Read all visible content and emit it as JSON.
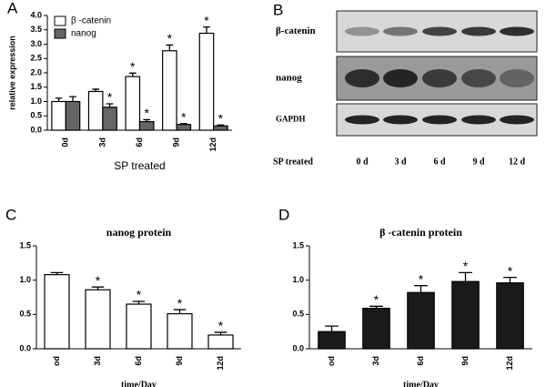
{
  "chart_data": [
    {
      "type": "bar",
      "panel": "A",
      "categories": [
        "0d",
        "3d",
        "6d",
        "9d",
        "12d"
      ],
      "x_label": "SP treated",
      "y_label": "relative expression",
      "ylim": [
        0,
        4
      ],
      "yticks": [
        {
          "value": 0,
          "label": "0.0"
        },
        {
          "value": 0.5,
          "label": "0.5"
        },
        {
          "value": 1,
          "label": "1.0"
        },
        {
          "value": 1.5,
          "label": "1.5"
        },
        {
          "value": 2,
          "label": "2.0"
        },
        {
          "value": 2.5,
          "label": "2.5"
        },
        {
          "value": 3,
          "label": "3.0"
        },
        {
          "value": 3.5,
          "label": "3.5"
        },
        {
          "value": 4,
          "label": "4.0"
        }
      ],
      "legend": "top-left",
      "series": [
        {
          "name": "β -catenin",
          "color": "#ffffff",
          "values": [
            1.0,
            1.35,
            1.87,
            2.77,
            3.38
          ],
          "errors": [
            0.12,
            0.08,
            0.12,
            0.2,
            0.22
          ],
          "markers": [
            null,
            null,
            "*",
            "*",
            "*"
          ]
        },
        {
          "name": "nanog",
          "color": "#666666",
          "values": [
            1.0,
            0.8,
            0.3,
            0.2,
            0.15
          ],
          "errors": [
            0.17,
            0.12,
            0.07,
            0.03,
            0.03
          ],
          "markers": [
            null,
            "*",
            "*",
            "*",
            "*"
          ]
        }
      ]
    },
    {
      "type": "bar",
      "panel": "C",
      "title": "nanog protein",
      "categories": [
        "od",
        "3d",
        "6d",
        "9d",
        "12d"
      ],
      "x_label": "time/Day",
      "ylim": [
        0,
        1.5
      ],
      "yticks": [
        {
          "value": 0,
          "label": "0.0"
        },
        {
          "value": 0.5,
          "label": "0.5"
        },
        {
          "value": 1,
          "label": "1.0"
        },
        {
          "value": 1.5,
          "label": "1.5"
        }
      ],
      "series": [
        {
          "color": "#ffffff",
          "values": [
            1.08,
            0.86,
            0.65,
            0.51,
            0.2
          ],
          "errors": [
            0.03,
            0.04,
            0.04,
            0.06,
            0.04
          ],
          "markers": [
            null,
            "*",
            "*",
            "*",
            "*"
          ]
        }
      ]
    },
    {
      "type": "bar",
      "panel": "D",
      "title": "β -catenin protein",
      "categories": [
        "od",
        "3d",
        "6d",
        "9d",
        "12d"
      ],
      "x_label": "time/Day",
      "ylim": [
        0,
        1.5
      ],
      "yticks": [
        {
          "value": 0,
          "label": "0.0"
        },
        {
          "value": 0.5,
          "label": "0.5"
        },
        {
          "value": 1,
          "label": "1.0"
        },
        {
          "value": 1.5,
          "label": "1.5"
        }
      ],
      "series": [
        {
          "color": "#1a1a1a",
          "values": [
            0.25,
            0.59,
            0.82,
            0.98,
            0.96
          ],
          "errors": [
            0.08,
            0.03,
            0.1,
            0.13,
            0.08
          ],
          "markers": [
            null,
            "*",
            "*",
            "*",
            "*"
          ]
        }
      ]
    }
  ],
  "blot": {
    "panel": "B",
    "rows": [
      "β-catenin",
      "nanog",
      "GAPDH"
    ],
    "x_label": "SP treated",
    "lanes": [
      "0 d",
      "3 d",
      "6 d",
      "9 d",
      "12 d"
    ]
  }
}
